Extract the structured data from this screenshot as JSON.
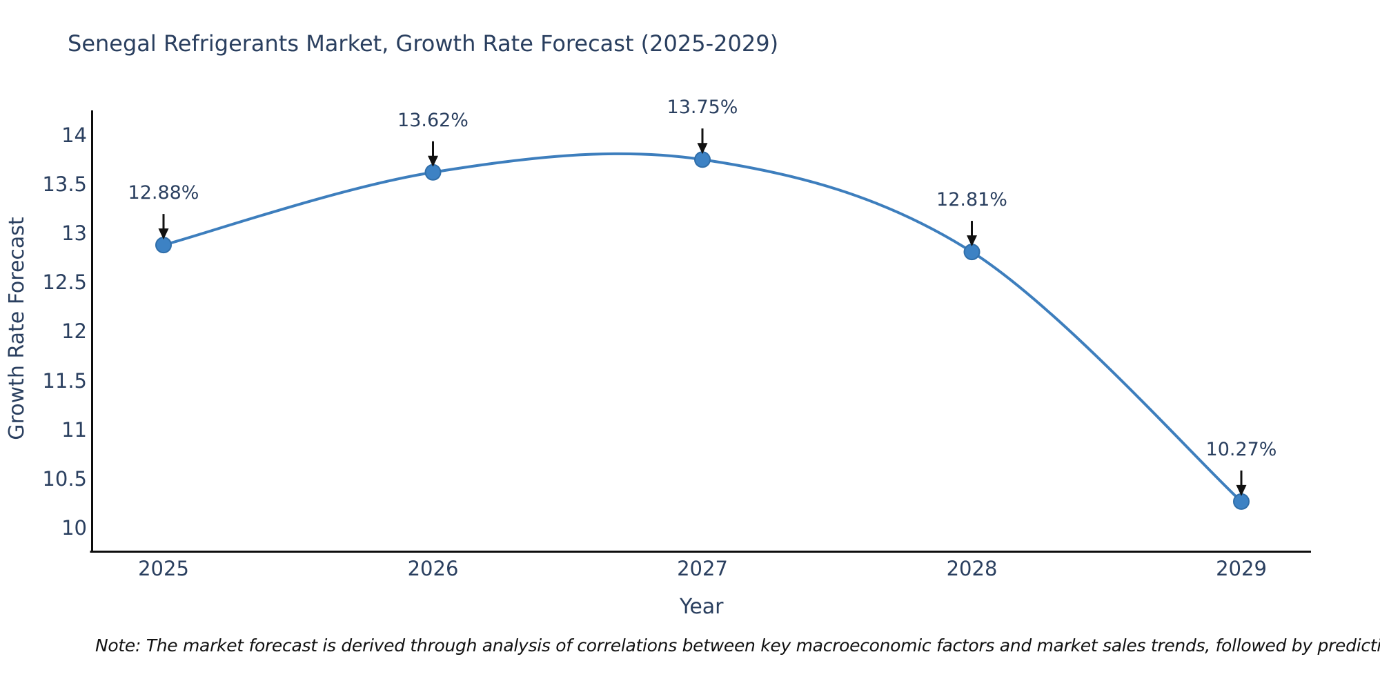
{
  "title": "Senegal Refrigerants Market, Growth Rate Forecast (2025-2029)",
  "note": "Note: The market forecast is derived through analysis of correlations between key macroeconomic factors and market sales trends, followed by predictive modeling to project future sal",
  "chart_data": {
    "type": "line",
    "title": "Senegal Refrigerants Market, Growth Rate Forecast (2025-2029)",
    "xlabel": "Year",
    "ylabel": "Growth Rate Forecast",
    "x": [
      "2025",
      "2026",
      "2027",
      "2028",
      "2029"
    ],
    "series": [
      {
        "name": "Growth Rate Forecast",
        "values": [
          12.88,
          13.62,
          13.75,
          12.81,
          10.27
        ]
      }
    ],
    "point_labels": [
      "12.88%",
      "13.62%",
      "13.75%",
      "12.81%",
      "10.27%"
    ],
    "yticks": [
      14,
      13.5,
      13,
      12.5,
      12,
      11.5,
      11,
      10.5,
      10
    ],
    "ylim": [
      9.76,
      14.25
    ],
    "line_shape": "spline",
    "grid": false,
    "legend": "none",
    "annotation_arrows": "down-to-point",
    "colors": {
      "line": "#3d7ebd",
      "marker_fill": "#3d82c4",
      "marker_edge": "#306ea9",
      "axis_line": "#0d0d0d",
      "arrow": "#111111",
      "text": "#2a3f5f",
      "note_text": "#111111",
      "background": "#ffffff"
    }
  }
}
